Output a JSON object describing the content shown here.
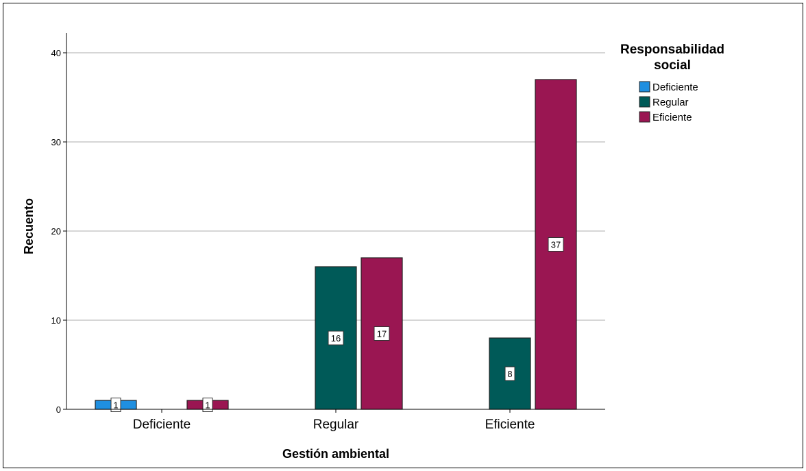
{
  "chart_data": {
    "type": "bar",
    "categories": [
      "Deficiente",
      "Regular",
      "Eficiente"
    ],
    "series": [
      {
        "name": "Deficiente",
        "color": "#1f8fe0",
        "values": [
          1,
          0,
          0
        ]
      },
      {
        "name": "Regular",
        "color": "#005a58",
        "values": [
          0,
          16,
          8
        ]
      },
      {
        "name": "Eficiente",
        "color": "#9a1652",
        "values": [
          1,
          17,
          37
        ]
      }
    ],
    "xlabel": "Gestión ambiental",
    "ylabel": "Recuento",
    "ylim": [
      0,
      42
    ],
    "yticks": [
      0,
      10,
      20,
      30,
      40
    ],
    "grid": true,
    "legend": {
      "title_line1": "Responsabilidad",
      "title_line2": "social",
      "position": "top-right"
    },
    "data_labels": true
  }
}
